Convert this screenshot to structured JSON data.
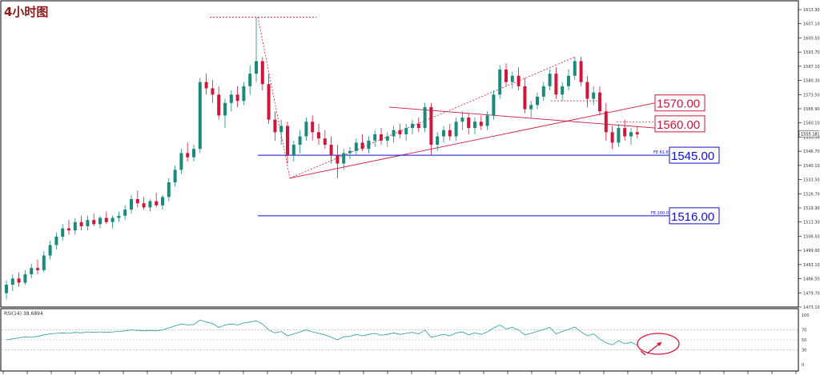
{
  "chart_title": "4小时图",
  "colors": {
    "up": "#1a8a7a",
    "down": "#d0163a",
    "level_blue": "#1010d0",
    "level_red": "#d0163a",
    "rsi_line": "#2a9aa0",
    "grid": "#c8c8c8"
  },
  "price_axis_labels": [
    "1613.90",
    "1607.10",
    "1600.50",
    "1593.70",
    "1587.10",
    "1580.30",
    "1573.50",
    "1566.90",
    "1560.10",
    "1553.50",
    "1546.70",
    "1540.10",
    "1533.50",
    "1526.70",
    "1519.90",
    "1513.30",
    "1506.50",
    "1499.90",
    "1493.10",
    "1486.50",
    "1479.70",
    "1473.10"
  ],
  "current_price_label": "1555.18",
  "level_boxes": [
    {
      "text": "1570.00",
      "color": "red"
    },
    {
      "text": "1560.00",
      "color": "red"
    },
    {
      "text": "1545.00",
      "color": "blue"
    },
    {
      "text": "1516.00",
      "color": "blue"
    }
  ],
  "fib_labels": [
    "FE 61.8",
    "FE 100.0"
  ],
  "rsi_title": "RSI(14) 38.6894",
  "rsi_axis_labels": [
    "100",
    "70",
    "50",
    "30",
    "0"
  ],
  "chart_data": {
    "type": "candlestick",
    "title": "4小时图",
    "ylim": [
      1473.1,
      1613.9
    ],
    "series": [
      {
        "o": 1479,
        "h": 1485,
        "l": 1476,
        "c": 1483
      },
      {
        "o": 1483,
        "h": 1488,
        "l": 1480,
        "c": 1486
      },
      {
        "o": 1486,
        "h": 1489,
        "l": 1482,
        "c": 1484
      },
      {
        "o": 1484,
        "h": 1490,
        "l": 1483,
        "c": 1488
      },
      {
        "o": 1488,
        "h": 1493,
        "l": 1486,
        "c": 1491
      },
      {
        "o": 1491,
        "h": 1495,
        "l": 1488,
        "c": 1490
      },
      {
        "o": 1490,
        "h": 1499,
        "l": 1489,
        "c": 1497
      },
      {
        "o": 1497,
        "h": 1504,
        "l": 1495,
        "c": 1502
      },
      {
        "o": 1502,
        "h": 1508,
        "l": 1500,
        "c": 1506
      },
      {
        "o": 1506,
        "h": 1512,
        "l": 1504,
        "c": 1510
      },
      {
        "o": 1510,
        "h": 1514,
        "l": 1507,
        "c": 1509
      },
      {
        "o": 1509,
        "h": 1515,
        "l": 1507,
        "c": 1513
      },
      {
        "o": 1513,
        "h": 1516,
        "l": 1509,
        "c": 1511
      },
      {
        "o": 1511,
        "h": 1516,
        "l": 1509,
        "c": 1514
      },
      {
        "o": 1514,
        "h": 1517,
        "l": 1511,
        "c": 1512
      },
      {
        "o": 1512,
        "h": 1516,
        "l": 1510,
        "c": 1515
      },
      {
        "o": 1515,
        "h": 1518,
        "l": 1512,
        "c": 1513
      },
      {
        "o": 1513,
        "h": 1516,
        "l": 1510,
        "c": 1515
      },
      {
        "o": 1515,
        "h": 1518,
        "l": 1513,
        "c": 1516
      },
      {
        "o": 1516,
        "h": 1521,
        "l": 1514,
        "c": 1519
      },
      {
        "o": 1519,
        "h": 1526,
        "l": 1517,
        "c": 1524
      },
      {
        "o": 1524,
        "h": 1528,
        "l": 1520,
        "c": 1522
      },
      {
        "o": 1522,
        "h": 1525,
        "l": 1519,
        "c": 1520
      },
      {
        "o": 1520,
        "h": 1524,
        "l": 1518,
        "c": 1523
      },
      {
        "o": 1523,
        "h": 1527,
        "l": 1520,
        "c": 1521
      },
      {
        "o": 1521,
        "h": 1526,
        "l": 1519,
        "c": 1525
      },
      {
        "o": 1525,
        "h": 1534,
        "l": 1523,
        "c": 1532
      },
      {
        "o": 1532,
        "h": 1540,
        "l": 1530,
        "c": 1538
      },
      {
        "o": 1538,
        "h": 1548,
        "l": 1536,
        "c": 1546
      },
      {
        "o": 1546,
        "h": 1551,
        "l": 1542,
        "c": 1544
      },
      {
        "o": 1544,
        "h": 1550,
        "l": 1542,
        "c": 1548
      },
      {
        "o": 1548,
        "h": 1582,
        "l": 1546,
        "c": 1580
      },
      {
        "o": 1580,
        "h": 1584,
        "l": 1574,
        "c": 1577
      },
      {
        "o": 1577,
        "h": 1581,
        "l": 1570,
        "c": 1574
      },
      {
        "o": 1574,
        "h": 1578,
        "l": 1562,
        "c": 1564
      },
      {
        "o": 1564,
        "h": 1572,
        "l": 1558,
        "c": 1570
      },
      {
        "o": 1570,
        "h": 1576,
        "l": 1566,
        "c": 1574
      },
      {
        "o": 1574,
        "h": 1578,
        "l": 1568,
        "c": 1571
      },
      {
        "o": 1571,
        "h": 1580,
        "l": 1569,
        "c": 1578
      },
      {
        "o": 1578,
        "h": 1588,
        "l": 1574,
        "c": 1584
      },
      {
        "o": 1584,
        "h": 1611,
        "l": 1580,
        "c": 1590
      },
      {
        "o": 1590,
        "h": 1592,
        "l": 1576,
        "c": 1579
      },
      {
        "o": 1579,
        "h": 1584,
        "l": 1560,
        "c": 1562
      },
      {
        "o": 1562,
        "h": 1566,
        "l": 1552,
        "c": 1556
      },
      {
        "o": 1556,
        "h": 1562,
        "l": 1550,
        "c": 1559
      },
      {
        "o": 1559,
        "h": 1561,
        "l": 1541,
        "c": 1545
      },
      {
        "o": 1545,
        "h": 1552,
        "l": 1542,
        "c": 1550
      },
      {
        "o": 1550,
        "h": 1557,
        "l": 1546,
        "c": 1554
      },
      {
        "o": 1554,
        "h": 1563,
        "l": 1552,
        "c": 1561
      },
      {
        "o": 1561,
        "h": 1564,
        "l": 1552,
        "c": 1556
      },
      {
        "o": 1556,
        "h": 1560,
        "l": 1550,
        "c": 1553
      },
      {
        "o": 1553,
        "h": 1557,
        "l": 1548,
        "c": 1550
      },
      {
        "o": 1550,
        "h": 1554,
        "l": 1541,
        "c": 1545
      },
      {
        "o": 1545,
        "h": 1550,
        "l": 1534,
        "c": 1541
      },
      {
        "o": 1541,
        "h": 1548,
        "l": 1538,
        "c": 1546
      },
      {
        "o": 1546,
        "h": 1549,
        "l": 1543,
        "c": 1547
      },
      {
        "o": 1547,
        "h": 1553,
        "l": 1545,
        "c": 1551
      },
      {
        "o": 1551,
        "h": 1555,
        "l": 1547,
        "c": 1548
      },
      {
        "o": 1548,
        "h": 1554,
        "l": 1546,
        "c": 1552
      },
      {
        "o": 1552,
        "h": 1557,
        "l": 1549,
        "c": 1555
      },
      {
        "o": 1555,
        "h": 1558,
        "l": 1550,
        "c": 1552
      },
      {
        "o": 1552,
        "h": 1556,
        "l": 1549,
        "c": 1554
      },
      {
        "o": 1554,
        "h": 1559,
        "l": 1551,
        "c": 1557
      },
      {
        "o": 1557,
        "h": 1560,
        "l": 1553,
        "c": 1555
      },
      {
        "o": 1555,
        "h": 1560,
        "l": 1552,
        "c": 1558
      },
      {
        "o": 1558,
        "h": 1562,
        "l": 1555,
        "c": 1560
      },
      {
        "o": 1560,
        "h": 1563,
        "l": 1556,
        "c": 1558
      },
      {
        "o": 1558,
        "h": 1570,
        "l": 1556,
        "c": 1568
      },
      {
        "o": 1568,
        "h": 1570,
        "l": 1545,
        "c": 1550
      },
      {
        "o": 1550,
        "h": 1556,
        "l": 1547,
        "c": 1554
      },
      {
        "o": 1554,
        "h": 1559,
        "l": 1551,
        "c": 1557
      },
      {
        "o": 1557,
        "h": 1560,
        "l": 1552,
        "c": 1554
      },
      {
        "o": 1554,
        "h": 1563,
        "l": 1552,
        "c": 1561
      },
      {
        "o": 1561,
        "h": 1566,
        "l": 1557,
        "c": 1563
      },
      {
        "o": 1563,
        "h": 1565,
        "l": 1555,
        "c": 1558
      },
      {
        "o": 1558,
        "h": 1563,
        "l": 1555,
        "c": 1561
      },
      {
        "o": 1561,
        "h": 1564,
        "l": 1557,
        "c": 1559
      },
      {
        "o": 1559,
        "h": 1566,
        "l": 1557,
        "c": 1564
      },
      {
        "o": 1564,
        "h": 1576,
        "l": 1562,
        "c": 1574
      },
      {
        "o": 1574,
        "h": 1588,
        "l": 1572,
        "c": 1586
      },
      {
        "o": 1586,
        "h": 1589,
        "l": 1578,
        "c": 1580
      },
      {
        "o": 1580,
        "h": 1585,
        "l": 1577,
        "c": 1583
      },
      {
        "o": 1583,
        "h": 1587,
        "l": 1576,
        "c": 1578
      },
      {
        "o": 1578,
        "h": 1582,
        "l": 1565,
        "c": 1567
      },
      {
        "o": 1567,
        "h": 1571,
        "l": 1563,
        "c": 1569
      },
      {
        "o": 1569,
        "h": 1575,
        "l": 1567,
        "c": 1573
      },
      {
        "o": 1573,
        "h": 1580,
        "l": 1571,
        "c": 1578
      },
      {
        "o": 1578,
        "h": 1586,
        "l": 1576,
        "c": 1584
      },
      {
        "o": 1584,
        "h": 1587,
        "l": 1572,
        "c": 1574
      },
      {
        "o": 1574,
        "h": 1580,
        "l": 1571,
        "c": 1578
      },
      {
        "o": 1578,
        "h": 1586,
        "l": 1576,
        "c": 1583
      },
      {
        "o": 1583,
        "h": 1592,
        "l": 1581,
        "c": 1590
      },
      {
        "o": 1590,
        "h": 1592,
        "l": 1578,
        "c": 1580
      },
      {
        "o": 1580,
        "h": 1583,
        "l": 1568,
        "c": 1572
      },
      {
        "o": 1572,
        "h": 1578,
        "l": 1569,
        "c": 1575
      },
      {
        "o": 1575,
        "h": 1578,
        "l": 1564,
        "c": 1566
      },
      {
        "o": 1566,
        "h": 1570,
        "l": 1552,
        "c": 1556
      },
      {
        "o": 1556,
        "h": 1559,
        "l": 1548,
        "c": 1551
      },
      {
        "o": 1551,
        "h": 1560,
        "l": 1549,
        "c": 1558
      },
      {
        "o": 1558,
        "h": 1562,
        "l": 1552,
        "c": 1554
      },
      {
        "o": 1554,
        "h": 1558,
        "l": 1550,
        "c": 1556
      },
      {
        "o": 1556,
        "h": 1559,
        "l": 1553,
        "c": 1555
      }
    ],
    "rsi": [
      50,
      52,
      54,
      56,
      55,
      57,
      60,
      62,
      63,
      64,
      63,
      65,
      64,
      66,
      65,
      66,
      65,
      66,
      67,
      68,
      70,
      69,
      68,
      69,
      68,
      70,
      74,
      78,
      82,
      80,
      81,
      90,
      86,
      83,
      75,
      80,
      82,
      80,
      84,
      86,
      88,
      82,
      70,
      64,
      67,
      58,
      62,
      66,
      70,
      66,
      63,
      60,
      55,
      50,
      56,
      57,
      61,
      58,
      61,
      63,
      59,
      61,
      64,
      61,
      63,
      65,
      62,
      70,
      55,
      58,
      61,
      58,
      64,
      66,
      60,
      64,
      61,
      66,
      74,
      80,
      72,
      75,
      70,
      60,
      63,
      67,
      71,
      75,
      62,
      67,
      71,
      76,
      66,
      58,
      62,
      52,
      44,
      40,
      48,
      42,
      45,
      39
    ],
    "levels": [
      1570.0,
      1560.0,
      1545.0,
      1516.0
    ],
    "rsi_levels": [
      70,
      50,
      30
    ]
  }
}
